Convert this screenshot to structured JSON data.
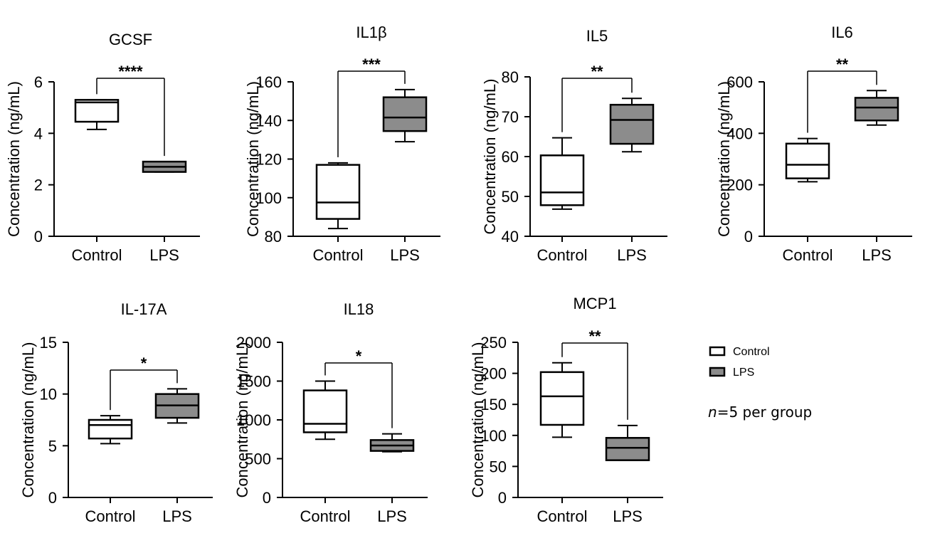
{
  "legend": {
    "control_label": "Control",
    "lps_label": "LPS",
    "note_n": "n",
    "note_rest": "=5 per group"
  },
  "chart_data": [
    {
      "type": "box",
      "title": "GCSF",
      "ylabel": "Concentration (ng/mL)",
      "categories": [
        "Control",
        "LPS"
      ],
      "ylim": [
        0,
        6
      ],
      "yticks": [
        0,
        2,
        4,
        6
      ],
      "significance": "****",
      "series": [
        {
          "name": "Control",
          "min": 4.15,
          "q1": 4.45,
          "median": 5.2,
          "q3": 5.3,
          "max": 5.3
        },
        {
          "name": "LPS",
          "min": 2.5,
          "q1": 2.5,
          "median": 2.7,
          "q3": 2.9,
          "max": 2.9
        }
      ]
    },
    {
      "type": "box",
      "title": "IL1β",
      "ylabel": "Concentration (ng/mL)",
      "categories": [
        "Control",
        "LPS"
      ],
      "ylim": [
        80,
        160
      ],
      "yticks": [
        80,
        100,
        120,
        140,
        160
      ],
      "significance": "***",
      "series": [
        {
          "name": "Control",
          "min": 84,
          "q1": 89,
          "median": 97.5,
          "q3": 117,
          "max": 118
        },
        {
          "name": "LPS",
          "min": 129,
          "q1": 134.5,
          "median": 141.5,
          "q3": 152,
          "max": 156
        }
      ]
    },
    {
      "type": "box",
      "title": "IL5",
      "ylabel": "Concentration (ng/mL)",
      "categories": [
        "Control",
        "LPS"
      ],
      "ylim": [
        40,
        80
      ],
      "yticks": [
        40,
        50,
        60,
        70,
        80
      ],
      "significance": "**",
      "series": [
        {
          "name": "Control",
          "min": 46.8,
          "q1": 47.8,
          "median": 51,
          "q3": 60.3,
          "max": 64.7
        },
        {
          "name": "LPS",
          "min": 61.2,
          "q1": 63.2,
          "median": 69.2,
          "q3": 73,
          "max": 74.6
        }
      ]
    },
    {
      "type": "box",
      "title": "IL6",
      "ylabel": "Concentration (ng/mL)",
      "categories": [
        "Control",
        "LPS"
      ],
      "ylim": [
        0,
        600
      ],
      "yticks": [
        0,
        200,
        400,
        600
      ],
      "significance": "**",
      "series": [
        {
          "name": "Control",
          "min": 212,
          "q1": 225,
          "median": 278,
          "q3": 360,
          "max": 380
        },
        {
          "name": "LPS",
          "min": 432,
          "q1": 450,
          "median": 500,
          "q3": 538,
          "max": 566
        }
      ]
    },
    {
      "type": "box",
      "title": "IL-17A",
      "ylabel": "Concentration (ng/mL)",
      "categories": [
        "Control",
        "LPS"
      ],
      "ylim": [
        0,
        15
      ],
      "yticks": [
        0,
        5,
        10,
        15
      ],
      "significance": "*",
      "series": [
        {
          "name": "Control",
          "min": 5.2,
          "q1": 5.7,
          "median": 7,
          "q3": 7.5,
          "max": 7.9
        },
        {
          "name": "LPS",
          "min": 7.2,
          "q1": 7.7,
          "median": 8.9,
          "q3": 10,
          "max": 10.5
        }
      ]
    },
    {
      "type": "box",
      "title": "IL18",
      "ylabel": "Concentration (ng/mL)",
      "categories": [
        "Control",
        "LPS"
      ],
      "ylim": [
        0,
        2000
      ],
      "yticks": [
        0,
        500,
        1000,
        1500,
        2000
      ],
      "significance": "*",
      "series": [
        {
          "name": "Control",
          "min": 750,
          "q1": 840,
          "median": 950,
          "q3": 1380,
          "max": 1500
        },
        {
          "name": "LPS",
          "min": 590,
          "q1": 600,
          "median": 670,
          "q3": 740,
          "max": 820
        }
      ]
    },
    {
      "type": "box",
      "title": "MCP1",
      "ylabel": "Concentration (ng/mL)",
      "categories": [
        "Control",
        "LPS"
      ],
      "ylim": [
        0,
        250
      ],
      "yticks": [
        0,
        50,
        100,
        150,
        200,
        250
      ],
      "significance": "**",
      "series": [
        {
          "name": "Control",
          "min": 97,
          "q1": 117,
          "median": 163,
          "q3": 202,
          "max": 217
        },
        {
          "name": "LPS",
          "min": 60,
          "q1": 60,
          "median": 80,
          "q3": 96,
          "max": 116
        }
      ]
    }
  ]
}
